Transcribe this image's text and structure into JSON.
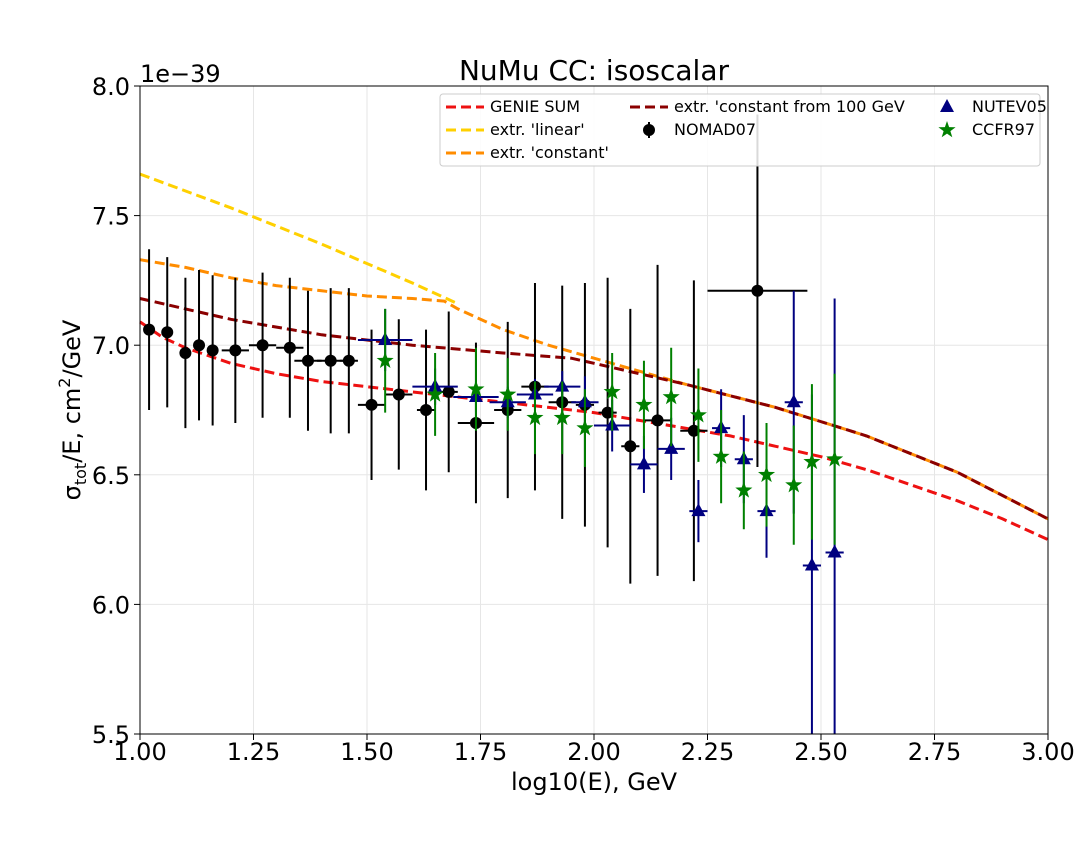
{
  "chart_data": {
    "type": "line",
    "title": "NuMu CC: isoscalar",
    "xlabel": "log10(E), GeV",
    "ylabel_parts": {
      "base": "σ",
      "sub": "tot",
      "mid": "/E, cm",
      "sup": "2",
      "end": "/GeV"
    },
    "y_offset_label": "1e−39",
    "xlim": [
      1.0,
      3.0
    ],
    "ylim": [
      5.5,
      8.0
    ],
    "x_ticks": [
      1.0,
      1.25,
      1.5,
      1.75,
      2.0,
      2.25,
      2.5,
      2.75,
      3.0
    ],
    "x_tick_labels": [
      "1.00",
      "1.25",
      "1.50",
      "1.75",
      "2.00",
      "2.25",
      "2.50",
      "2.75",
      "3.00"
    ],
    "y_ticks": [
      5.5,
      6.0,
      6.5,
      7.0,
      7.5,
      8.0
    ],
    "y_tick_labels": [
      "5.5",
      "6.0",
      "6.5",
      "7.0",
      "7.5",
      "8.0"
    ],
    "grid": true,
    "legend_position": "top-right",
    "lines": [
      {
        "name": "GENIE SUM",
        "color": "#ee1111",
        "dash": "dashed",
        "x": [
          1.0,
          1.05,
          1.1,
          1.15,
          1.2,
          1.3,
          1.4,
          1.5,
          1.6,
          1.7,
          1.8,
          1.9,
          2.0,
          2.1,
          2.2,
          2.3,
          2.4,
          2.5,
          2.6,
          2.7,
          2.8,
          2.9,
          3.0
        ],
        "y": [
          7.09,
          7.03,
          6.99,
          6.96,
          6.93,
          6.89,
          6.86,
          6.84,
          6.82,
          6.8,
          6.78,
          6.76,
          6.74,
          6.71,
          6.68,
          6.65,
          6.61,
          6.57,
          6.52,
          6.46,
          6.4,
          6.33,
          6.25
        ]
      },
      {
        "name": "extr. 'linear'",
        "color": "#ffd000",
        "dash": "dashed",
        "x": [
          1.0,
          1.2,
          1.4,
          1.6,
          1.7
        ],
        "y": [
          7.66,
          7.53,
          7.39,
          7.24,
          7.16
        ]
      },
      {
        "name": "extr. 'constant'",
        "color": "#ff8c00",
        "dash": "dashed",
        "x": [
          1.0,
          1.1,
          1.2,
          1.3,
          1.4,
          1.5,
          1.6,
          1.67,
          1.7,
          1.8,
          1.9,
          2.0,
          2.2,
          2.4,
          2.6,
          2.8,
          3.0
        ],
        "y": [
          7.33,
          7.3,
          7.26,
          7.23,
          7.21,
          7.19,
          7.18,
          7.17,
          7.14,
          7.06,
          7.0,
          6.95,
          6.85,
          6.76,
          6.65,
          6.51,
          6.33
        ]
      },
      {
        "name": "extr. 'constant from 100 GeV",
        "color": "#8b0000",
        "dash": "dashed",
        "x": [
          1.0,
          1.2,
          1.4,
          1.6,
          1.8,
          1.95,
          2.0,
          2.2,
          2.4,
          2.6,
          2.8,
          3.0
        ],
        "y": [
          7.18,
          7.1,
          7.04,
          7.0,
          6.97,
          6.95,
          6.93,
          6.85,
          6.76,
          6.65,
          6.51,
          6.33
        ]
      }
    ],
    "series": [
      {
        "name": "NOMAD07",
        "marker": "circle",
        "color": "#000000",
        "ecolor": "#000000",
        "points": [
          {
            "x": 1.02,
            "y": 7.06,
            "yerr": 0.31,
            "xerr": 0.0
          },
          {
            "x": 1.06,
            "y": 7.05,
            "yerr": 0.29,
            "xerr": 0.0
          },
          {
            "x": 1.1,
            "y": 6.97,
            "yerr": 0.29,
            "xerr": 0.0
          },
          {
            "x": 1.13,
            "y": 7.0,
            "yerr": 0.29,
            "xerr": 0.0
          },
          {
            "x": 1.16,
            "y": 6.98,
            "yerr": 0.29,
            "xerr": 0.0
          },
          {
            "x": 1.21,
            "y": 6.98,
            "yerr": 0.28,
            "xerr": 0.03
          },
          {
            "x": 1.27,
            "y": 7.0,
            "yerr": 0.28,
            "xerr": 0.03
          },
          {
            "x": 1.33,
            "y": 6.99,
            "yerr": 0.27,
            "xerr": 0.03
          },
          {
            "x": 1.37,
            "y": 6.94,
            "yerr": 0.27,
            "xerr": 0.03
          },
          {
            "x": 1.42,
            "y": 6.94,
            "yerr": 0.28,
            "xerr": 0.03
          },
          {
            "x": 1.46,
            "y": 6.94,
            "yerr": 0.28,
            "xerr": 0.02
          },
          {
            "x": 1.51,
            "y": 6.77,
            "yerr": 0.29,
            "xerr": 0.03
          },
          {
            "x": 1.57,
            "y": 6.81,
            "yerr": 0.29,
            "xerr": 0.03
          },
          {
            "x": 1.63,
            "y": 6.75,
            "yerr": 0.31,
            "xerr": 0.02
          },
          {
            "x": 1.68,
            "y": 6.82,
            "yerr": 0.31,
            "xerr": 0.02
          },
          {
            "x": 1.74,
            "y": 6.7,
            "yerr": 0.31,
            "xerr": 0.04
          },
          {
            "x": 1.81,
            "y": 6.75,
            "yerr": 0.34,
            "xerr": 0.03
          },
          {
            "x": 1.87,
            "y": 6.84,
            "yerr": 0.4,
            "xerr": 0.03
          },
          {
            "x": 1.93,
            "y": 6.78,
            "yerr": 0.45,
            "xerr": 0.03
          },
          {
            "x": 1.98,
            "y": 6.77,
            "yerr": 0.47,
            "xerr": 0.02
          },
          {
            "x": 2.03,
            "y": 6.74,
            "yerr": 0.52,
            "xerr": 0.02
          },
          {
            "x": 2.08,
            "y": 6.61,
            "yerr": 0.53,
            "xerr": 0.02
          },
          {
            "x": 2.14,
            "y": 6.71,
            "yerr": 0.6,
            "xerr": 0.03
          },
          {
            "x": 2.22,
            "y": 6.67,
            "yerr": 0.58,
            "xerr": 0.03
          },
          {
            "x": 2.36,
            "y": 7.21,
            "yerr": 0.68,
            "xerr": 0.11
          }
        ]
      },
      {
        "name": "NUTEV05",
        "marker": "triangle",
        "color": "#000080",
        "ecolor": "#000080",
        "points": [
          {
            "x": 1.54,
            "y": 7.02,
            "yerr": 0.12,
            "xerr": 0.06
          },
          {
            "x": 1.65,
            "y": 6.84,
            "yerr": 0.07,
            "xerr": 0.05
          },
          {
            "x": 1.74,
            "y": 6.8,
            "yerr": 0.06,
            "xerr": 0.05
          },
          {
            "x": 1.81,
            "y": 6.78,
            "yerr": 0.06,
            "xerr": 0.04
          },
          {
            "x": 1.87,
            "y": 6.81,
            "yerr": 0.06,
            "xerr": 0.04
          },
          {
            "x": 1.93,
            "y": 6.84,
            "yerr": 0.06,
            "xerr": 0.04
          },
          {
            "x": 1.98,
            "y": 6.78,
            "yerr": 0.1,
            "xerr": 0.03
          },
          {
            "x": 2.04,
            "y": 6.69,
            "yerr": 0.1,
            "xerr": 0.04
          },
          {
            "x": 2.11,
            "y": 6.54,
            "yerr": 0.11,
            "xerr": 0.03
          },
          {
            "x": 2.17,
            "y": 6.6,
            "yerr": 0.12,
            "xerr": 0.03
          },
          {
            "x": 2.23,
            "y": 6.36,
            "yerr": 0.12,
            "xerr": 0.02
          },
          {
            "x": 2.28,
            "y": 6.68,
            "yerr": 0.15,
            "xerr": 0.02
          },
          {
            "x": 2.33,
            "y": 6.56,
            "yerr": 0.17,
            "xerr": 0.02
          },
          {
            "x": 2.38,
            "y": 6.36,
            "yerr": 0.18,
            "xerr": 0.02
          },
          {
            "x": 2.44,
            "y": 6.78,
            "yerr": 0.43,
            "xerr": 0.02
          },
          {
            "x": 2.48,
            "y": 6.15,
            "yerr": 0.66,
            "xerr": 0.02
          },
          {
            "x": 2.53,
            "y": 6.2,
            "yerr": 0.98,
            "xerr": 0.02
          }
        ]
      },
      {
        "name": "CCFR97",
        "marker": "star",
        "color": "#008000",
        "ecolor": "#008000",
        "points": [
          {
            "x": 1.54,
            "y": 6.94,
            "yerr": 0.2,
            "xerr": 0.0
          },
          {
            "x": 1.65,
            "y": 6.81,
            "yerr": 0.16,
            "xerr": 0.0
          },
          {
            "x": 1.74,
            "y": 6.83,
            "yerr": 0.16,
            "xerr": 0.0
          },
          {
            "x": 1.81,
            "y": 6.81,
            "yerr": 0.14,
            "xerr": 0.0
          },
          {
            "x": 1.87,
            "y": 6.72,
            "yerr": 0.14,
            "xerr": 0.0
          },
          {
            "x": 1.93,
            "y": 6.72,
            "yerr": 0.14,
            "xerr": 0.0
          },
          {
            "x": 1.98,
            "y": 6.68,
            "yerr": 0.15,
            "xerr": 0.0
          },
          {
            "x": 2.04,
            "y": 6.82,
            "yerr": 0.15,
            "xerr": 0.0
          },
          {
            "x": 2.11,
            "y": 6.77,
            "yerr": 0.17,
            "xerr": 0.0
          },
          {
            "x": 2.17,
            "y": 6.8,
            "yerr": 0.19,
            "xerr": 0.0
          },
          {
            "x": 2.23,
            "y": 6.73,
            "yerr": 0.18,
            "xerr": 0.0
          },
          {
            "x": 2.28,
            "y": 6.57,
            "yerr": 0.18,
            "xerr": 0.0
          },
          {
            "x": 2.33,
            "y": 6.44,
            "yerr": 0.15,
            "xerr": 0.0
          },
          {
            "x": 2.38,
            "y": 6.5,
            "yerr": 0.2,
            "xerr": 0.0
          },
          {
            "x": 2.44,
            "y": 6.46,
            "yerr": 0.23,
            "xerr": 0.0
          },
          {
            "x": 2.48,
            "y": 6.55,
            "yerr": 0.3,
            "xerr": 0.0
          },
          {
            "x": 2.53,
            "y": 6.56,
            "yerr": 0.33,
            "xerr": 0.0
          }
        ]
      }
    ],
    "legend_entries": [
      {
        "label": "GENIE SUM",
        "kind": "line",
        "color": "#ee1111"
      },
      {
        "label": "extr. 'linear'",
        "kind": "line",
        "color": "#ffd000"
      },
      {
        "label": "extr. 'constant'",
        "kind": "line",
        "color": "#ff8c00"
      },
      {
        "label": "extr. 'constant from 100 GeV",
        "kind": "line",
        "color": "#8b0000"
      },
      {
        "label": "NOMAD07",
        "kind": "circle",
        "color": "#000000"
      },
      {
        "label": "NUTEV05",
        "kind": "triangle",
        "color": "#000080"
      },
      {
        "label": "CCFR97",
        "kind": "star",
        "color": "#008000"
      }
    ]
  }
}
